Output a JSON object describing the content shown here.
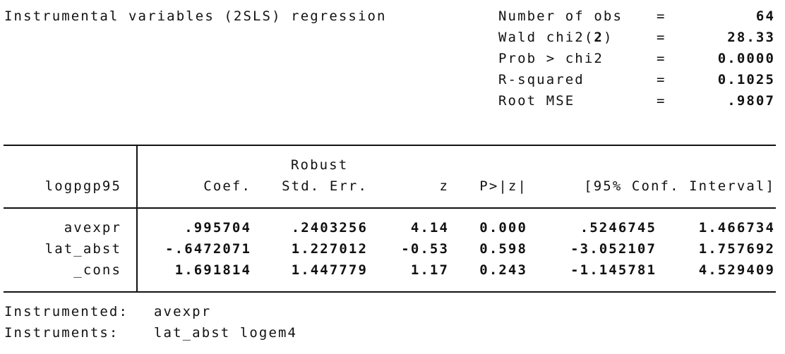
{
  "header": {
    "title": "Instrumental variables (2SLS) regression",
    "stats": [
      {
        "label": "Number of obs",
        "eq": "=",
        "value": "64"
      },
      {
        "label": "Wald chi2(2)",
        "eq": "=",
        "value": "28.33"
      },
      {
        "label": "Prob > chi2",
        "eq": "=",
        "value": "0.0000"
      },
      {
        "label": "R-squared",
        "eq": "=",
        "value": "0.1025"
      },
      {
        "label": "Root MSE",
        "eq": "=",
        "value": ".9807"
      }
    ]
  },
  "table": {
    "depvar": "logpgp95",
    "robust_label": "Robust",
    "columns": {
      "coef": "Coef.",
      "se": "Std. Err.",
      "z": "z",
      "p": "P>|z|",
      "ci": "[95% Conf. Interval]"
    },
    "rows": [
      {
        "var": "avexpr",
        "coef": ".995704",
        "se": ".2403256",
        "z": "4.14",
        "p": "0.000",
        "lo": ".5246745",
        "hi": "1.466734"
      },
      {
        "var": "lat_abst",
        "coef": "-.6472071",
        "se": "1.227012",
        "z": "-0.53",
        "p": "0.598",
        "lo": "-3.052107",
        "hi": "1.757692"
      },
      {
        "var": "_cons",
        "coef": "1.691814",
        "se": "1.447779",
        "z": "1.17",
        "p": "0.243",
        "lo": "-1.145781",
        "hi": "4.529409"
      }
    ]
  },
  "footer": {
    "instrumented_label": "Instrumented:",
    "instrumented_value": "avexpr",
    "instruments_label": "Instruments:",
    "instruments_value": "lat_abst logem4"
  }
}
